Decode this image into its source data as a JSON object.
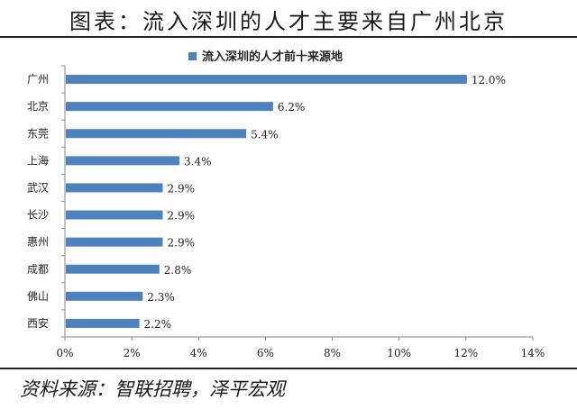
{
  "header": {
    "title": "图表：流入深圳的人才主要来自广州北京"
  },
  "footer": {
    "source": "资料来源：智联招聘，泽平宏观"
  },
  "colors": {
    "bar": "#4f81bd",
    "axis": "#888888"
  },
  "chart_data": {
    "type": "bar",
    "orientation": "horizontal",
    "categories": [
      "广州",
      "北京",
      "东莞",
      "上海",
      "武汉",
      "长沙",
      "惠州",
      "成都",
      "佛山",
      "西安"
    ],
    "series": [
      {
        "name": "流入深圳的人才前十来源地",
        "values": [
          12.0,
          6.2,
          5.4,
          3.4,
          2.9,
          2.9,
          2.9,
          2.8,
          2.3,
          2.2
        ]
      }
    ],
    "value_labels": [
      "12.0%",
      "6.2%",
      "5.4%",
      "3.4%",
      "2.9%",
      "2.9%",
      "2.9%",
      "2.8%",
      "2.3%",
      "2.2%"
    ],
    "xticks": [
      "0%",
      "2%",
      "4%",
      "6%",
      "8%",
      "10%",
      "12%",
      "14%"
    ],
    "xlim": [
      0,
      14
    ],
    "legend": "top-center",
    "grid": false
  }
}
